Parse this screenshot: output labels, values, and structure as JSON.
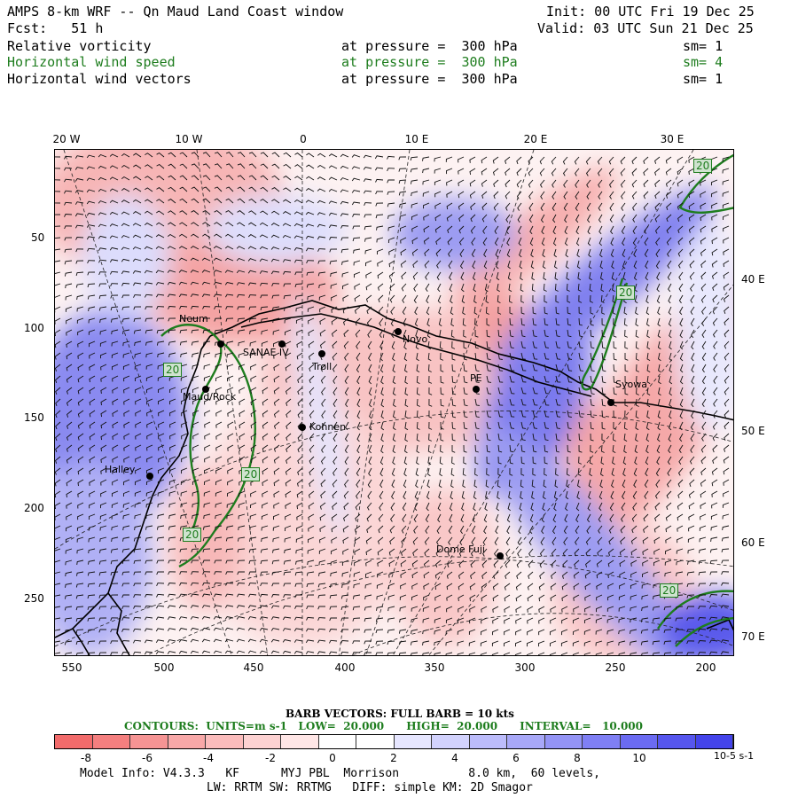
{
  "header": {
    "title": "AMPS 8-km WRF -- Qn Maud Land Coast window",
    "init": "Init: 00 UTC Fri 19 Dec 25",
    "fcst": "Fcst:   51 h",
    "valid": "Valid: 03 UTC Sun 21 Dec 25",
    "fields": [
      {
        "name": "Relative vorticity",
        "pressure": "at pressure =  300 hPa",
        "sm": "sm= 1",
        "color": "#000000"
      },
      {
        "name": "Horizontal wind speed",
        "pressure": "at pressure =  300 hPa",
        "sm": "sm= 4",
        "color": "#1e7d1e"
      },
      {
        "name": "Horizontal wind vectors",
        "pressure": "at pressure =  300 hPa",
        "sm": "sm= 1",
        "color": "#000000"
      }
    ]
  },
  "map": {
    "top_longitudes": [
      "20 W",
      "10 W",
      "0",
      "10 E",
      "20 E",
      "30 E"
    ],
    "left_ticks": [
      "50",
      "100",
      "150",
      "200",
      "250"
    ],
    "bottom_ticks": [
      "550",
      "500",
      "450",
      "400",
      "350",
      "300",
      "250",
      "200"
    ],
    "right_latitudes": [
      "40 E",
      "50 E",
      "60 E",
      "70 E"
    ],
    "stations": [
      "Neum",
      "SANAE IV",
      "Troll",
      "Novo",
      "PE",
      "Syowa",
      "Kohnen",
      "Maud/Rock",
      "Halley",
      "Dome Fuji"
    ],
    "contour_labels": [
      "20",
      "20",
      "20",
      "20",
      "20",
      "20"
    ]
  },
  "colorbar": {
    "barb_title": "BARB VECTORS:  FULL BARB = 10 kts",
    "contours_line": "CONTOURS:  UNITS=m s-1   LOW=  20.000      HIGH=  20.000      INTERVAL=   10.000",
    "ticks": [
      "-8",
      "-6",
      "-4",
      "-2",
      "0",
      "2",
      "4",
      "6",
      "8",
      "10",
      "10-5 s-1"
    ],
    "colors": [
      "#f26b6b",
      "#f47f7f",
      "#f69494",
      "#f8a8a8",
      "#fbbcbc",
      "#fdd2d2",
      "#ffe6e6",
      "#ffffff",
      "#ffffff",
      "#e6e6ff",
      "#d2d2fd",
      "#bcbcfb",
      "#a8a8f8",
      "#9494f6",
      "#7f7ff4",
      "#6b6bf2",
      "#5656ee",
      "#4444ea"
    ]
  },
  "footer": {
    "line1": "Model Info: V4.3.3   KF      MYJ PBL  Morrison          8.0 km,  60 levels,",
    "line2": "LW: RRTM SW: RRTMG   DIFF: simple KM: 2D Smagor"
  }
}
